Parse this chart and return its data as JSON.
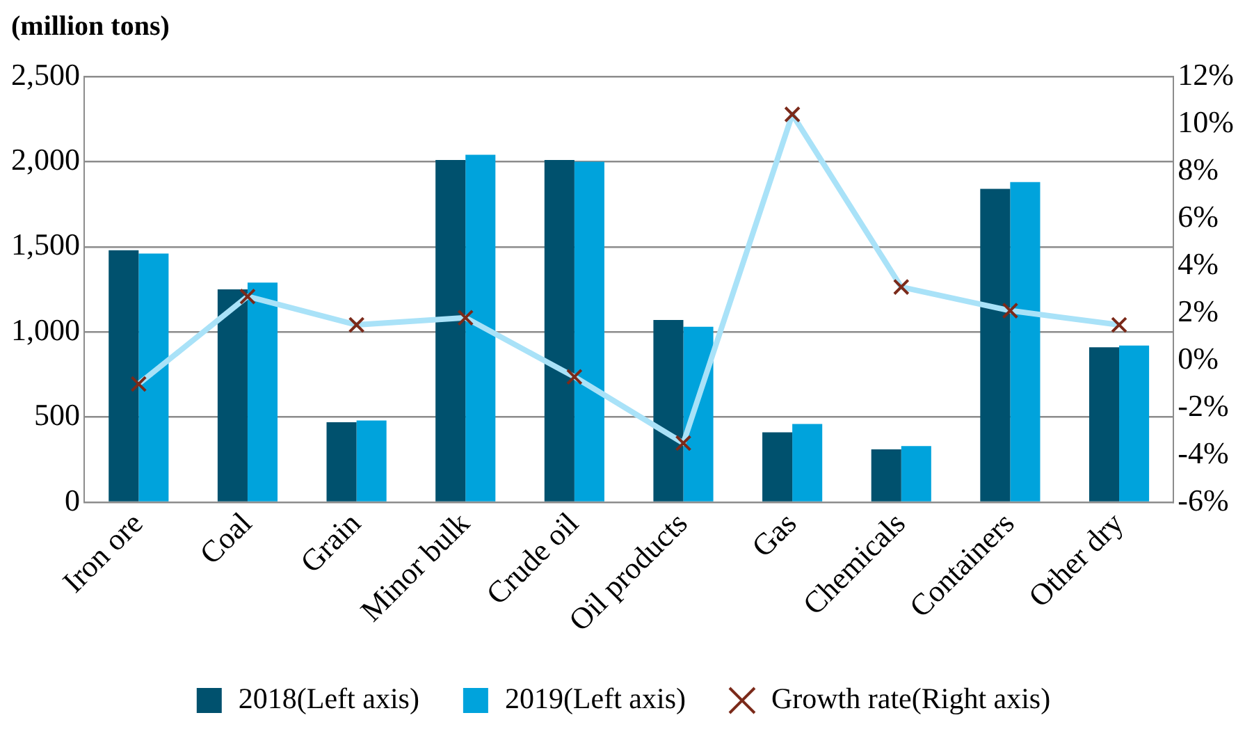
{
  "chart_data": {
    "type": "bar",
    "ylabel": "(million tons)",
    "categories": [
      "Iron ore",
      "Coal",
      "Grain",
      "Minor bulk",
      "Crude oil",
      "Oil products",
      "Gas",
      "Chemicals",
      "Containers",
      "Other dry"
    ],
    "series": [
      {
        "name": "2018(Left axis)",
        "color": "#00516e",
        "values": [
          1480,
          1250,
          470,
          2010,
          2010,
          1070,
          410,
          310,
          1840,
          910
        ]
      },
      {
        "name": "2019(Left axis)",
        "color": "#00a3dc",
        "values": [
          1460,
          1290,
          480,
          2040,
          2000,
          1030,
          460,
          330,
          1880,
          920
        ]
      },
      {
        "name": "Growth rate(Right axis)",
        "type": "line",
        "axis": "y2",
        "color": "#a9e2f8",
        "marker": "cross",
        "values": [
          -1.0,
          2.7,
          1.5,
          1.8,
          -0.7,
          -3.5,
          10.4,
          3.1,
          2.1,
          1.5
        ]
      }
    ],
    "ylim": [
      0,
      2500
    ],
    "yticks": [
      0,
      {
        "value": 500,
        "label": "500"
      },
      {
        "value": 1000,
        "label": "1,000"
      },
      {
        "value": 1500,
        "label": "1,500"
      },
      {
        "value": 2000,
        "label": "2,000"
      },
      {
        "value": 2500,
        "label": "2,500"
      }
    ],
    "y2lim": [
      -6,
      12
    ],
    "y2ticks": [
      {
        "value": -6,
        "label": "-6%"
      },
      {
        "value": -4,
        "label": "-4%"
      },
      {
        "value": -2,
        "label": "-2%"
      },
      {
        "value": 0,
        "label": "0%"
      },
      {
        "value": 2,
        "label": "2%"
      },
      {
        "value": 4,
        "label": "4%"
      },
      {
        "value": 6,
        "label": "6%"
      },
      {
        "value": 8,
        "label": "8%"
      },
      {
        "value": 10,
        "label": "10%"
      },
      {
        "value": 12,
        "label": "12%"
      }
    ],
    "grid": "y",
    "legend": "bottom"
  }
}
